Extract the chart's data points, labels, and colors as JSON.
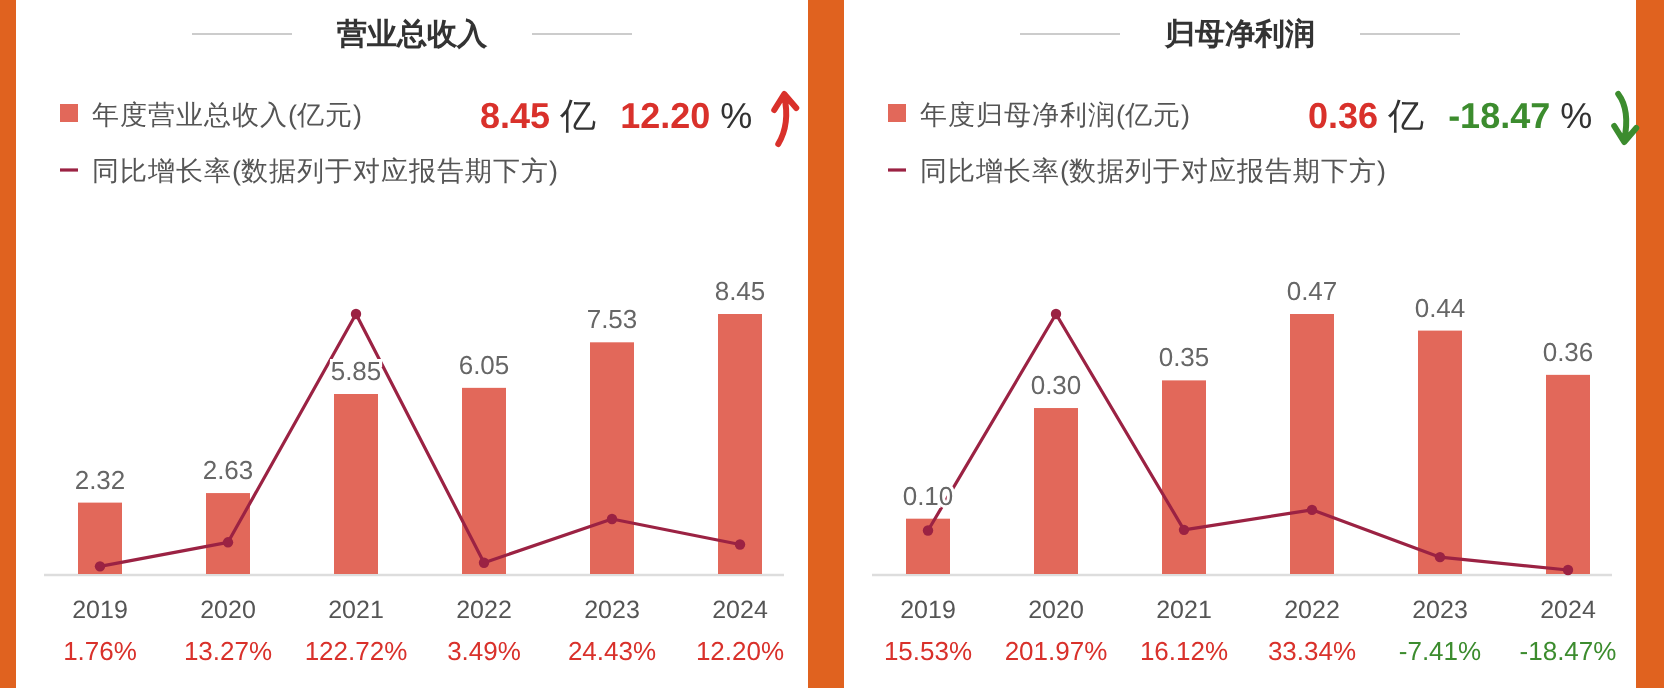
{
  "chart_data": [
    {
      "type": "bar",
      "title": "营业总收入",
      "categories": [
        "2019",
        "2020",
        "2021",
        "2022",
        "2023",
        "2024"
      ],
      "legend": "top left",
      "marker": "circle",
      "annotations": [
        "8.45 亿",
        "12.20 %"
      ],
      "series": [
        {
          "name": "年度营业总收入(亿元)",
          "color": "#e2685a",
          "values": [
            2.32,
            2.63,
            5.85,
            6.05,
            7.53,
            8.45
          ],
          "value_labels": [
            "2.32",
            "2.63",
            "5.85",
            "6.05",
            "7.53",
            "8.45"
          ]
        },
        {
          "name": "同比增长率(数据列于对应报告期下方)",
          "type": "line",
          "axis": "y2",
          "color": "#9b2243",
          "values": [
            1.76,
            13.27,
            122.72,
            3.49,
            24.43,
            12.2
          ],
          "value_labels": [
            "1.76%",
            "13.27%",
            "122.72%",
            "3.49%",
            "24.43%",
            "12.20%"
          ]
        }
      ]
    },
    {
      "type": "bar",
      "title": "归母净利润",
      "categories": [
        "2019",
        "2020",
        "2021",
        "2022",
        "2023",
        "2024"
      ],
      "legend": "top left",
      "marker": "circle",
      "annotations": [
        "0.36 亿",
        "-18.47 %"
      ],
      "series": [
        {
          "name": "年度归母净利润(亿元)",
          "color": "#e2685a",
          "values": [
            0.1,
            0.3,
            0.35,
            0.47,
            0.44,
            0.36
          ],
          "value_labels": [
            "0.10",
            "0.30",
            "0.35",
            "0.47",
            "0.44",
            "0.36"
          ]
        },
        {
          "name": "同比增长率(数据列于对应报告期下方)",
          "type": "line",
          "axis": "y2",
          "color": "#9b2243",
          "values": [
            15.53,
            201.97,
            16.12,
            33.34,
            -7.41,
            -18.47
          ],
          "value_labels": [
            "15.53%",
            "201.97%",
            "16.12%",
            "33.34%",
            "-7.41%",
            "-18.47%"
          ]
        }
      ]
    }
  ]
}
